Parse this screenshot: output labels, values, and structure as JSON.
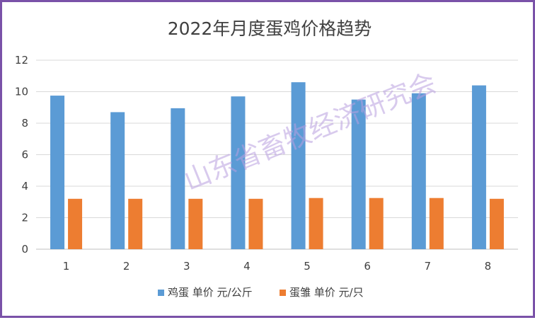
{
  "chart_data": {
    "type": "bar",
    "title": "2022年月度蛋鸡价格趋势",
    "xlabel": "",
    "ylabel": "",
    "categories": [
      "1",
      "2",
      "3",
      "4",
      "5",
      "6",
      "7",
      "8"
    ],
    "series": [
      {
        "name": "鸡蛋 单价 元/公斤",
        "color": "#5b9bd5",
        "values": [
          9.75,
          8.7,
          8.95,
          9.7,
          10.6,
          9.5,
          9.9,
          10.4
        ]
      },
      {
        "name": "蛋雏 单价 元/只",
        "color": "#ed7d31",
        "values": [
          3.2,
          3.2,
          3.2,
          3.2,
          3.25,
          3.25,
          3.25,
          3.2
        ]
      }
    ],
    "ylim": [
      0,
      12
    ],
    "yticks": [
      "0",
      "2",
      "4",
      "6",
      "8",
      "10",
      "12"
    ],
    "grid": true,
    "legend_position": "bottom"
  },
  "watermark": "山东省畜牧经济研究会"
}
